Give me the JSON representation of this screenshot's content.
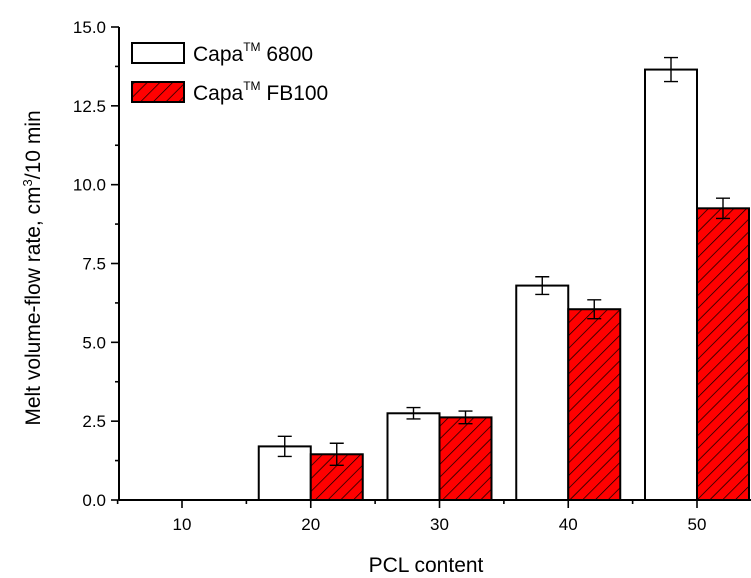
{
  "chart_data": {
    "type": "bar",
    "xlabel": "PCL content",
    "ylabel": {
      "main": "Melt volume-flow rate, cm",
      "sup": "3",
      "rest": "/10 min"
    },
    "categories": [
      "10",
      "20",
      "30",
      "40",
      "50"
    ],
    "ylim": [
      0,
      15
    ],
    "y_ticks": [
      "0.0",
      "2.5",
      "5.0",
      "7.5",
      "10.0",
      "12.5",
      "15.0"
    ],
    "legend_position": "top-left",
    "series": [
      {
        "name": {
          "base": "Capa",
          "sup": "TM",
          "suffix": " 6800"
        },
        "style": "open",
        "color": "#ffffff",
        "values": [
          null,
          1.7,
          2.75,
          6.8,
          13.65
        ],
        "errors": [
          null,
          0.32,
          0.18,
          0.28,
          0.38
        ]
      },
      {
        "name": {
          "base": "Capa",
          "sup": "TM",
          "suffix": " FB100"
        },
        "style": "hatched",
        "color": "#ff0000",
        "values": [
          null,
          1.45,
          2.62,
          6.05,
          9.25
        ],
        "errors": [
          null,
          0.35,
          0.2,
          0.3,
          0.32
        ]
      }
    ]
  }
}
